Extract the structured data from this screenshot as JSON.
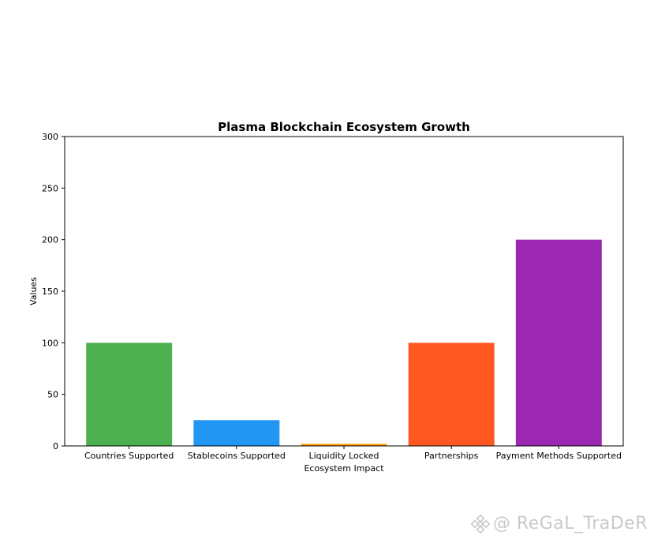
{
  "chart_data": {
    "type": "bar",
    "title": "Plasma Blockchain Ecosystem Growth",
    "xlabel": "Ecosystem Impact",
    "ylabel": "Values",
    "categories": [
      "Countries Supported",
      "Stablecoins Supported",
      "Liquidity Locked",
      "Partnerships",
      "Payment Methods Supported"
    ],
    "values": [
      100,
      25,
      2,
      100,
      200
    ],
    "colors": [
      "#4caf50",
      "#2196f3",
      "#ff9800",
      "#ff5722",
      "#9c27b0"
    ],
    "ylim": [
      0,
      300
    ],
    "yticks": [
      0,
      50,
      100,
      150,
      200,
      250,
      300
    ],
    "grid": false,
    "legend": "none"
  },
  "watermark": {
    "text": "@ ReGaL_TraDeR",
    "icon": "binance-logo-icon"
  }
}
